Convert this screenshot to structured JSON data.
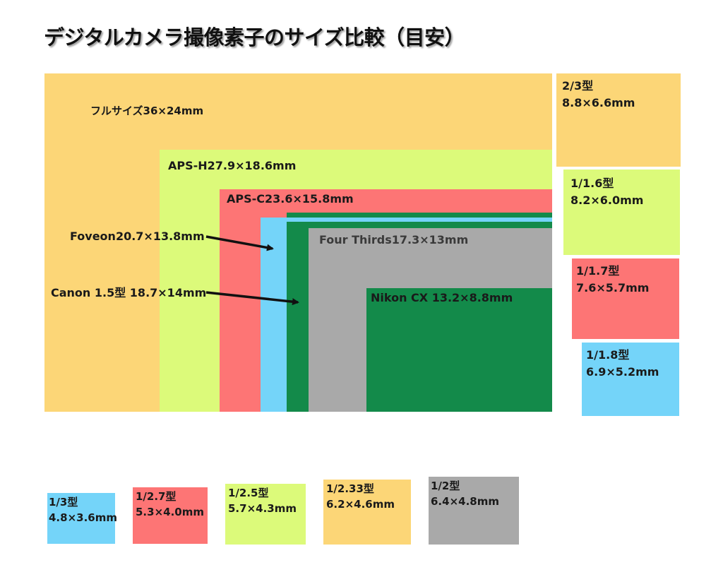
{
  "title": "デジタルカメラ撮像素子のサイズ比較（目安）",
  "colors": {
    "orange": "#fcd677",
    "lime": "#dcfa7a",
    "red": "#fd7575",
    "cyan": "#74d4f9",
    "green": "#138a4a",
    "gray": "#a9a9a9"
  },
  "main_sensors": {
    "full": "フルサイズ36×24mm",
    "aps_h": "APS-H27.9×18.6mm",
    "aps_c": "APS-C23.6×15.8mm",
    "foveon": "Foveon20.7×13.8mm",
    "canon15": "Canon 1.5型 18.7×14mm",
    "four_thirds": "Four Thirds17.3×13mm",
    "nikon_cx": "Nikon CX 13.2×8.8mm"
  },
  "right_sensors": [
    {
      "type": "2/3型",
      "size": "8.8×6.6mm"
    },
    {
      "type": "1/1.6型",
      "size": "8.2×6.0mm"
    },
    {
      "type": "1/1.7型",
      "size": "7.6×5.7mm"
    },
    {
      "type": "1/1.8型",
      "size": "6.9×5.2mm"
    }
  ],
  "bottom_sensors": [
    {
      "type": "1/3型",
      "size": "4.8×3.6mm"
    },
    {
      "type": "1/2.7型",
      "size": "5.3×4.0mm"
    },
    {
      "type": "1/2.5型",
      "size": "5.7×4.3mm"
    },
    {
      "type": "1/2.33型",
      "size": "6.2×4.6mm"
    },
    {
      "type": "1/2型",
      "size": "6.4×4.8mm"
    }
  ]
}
